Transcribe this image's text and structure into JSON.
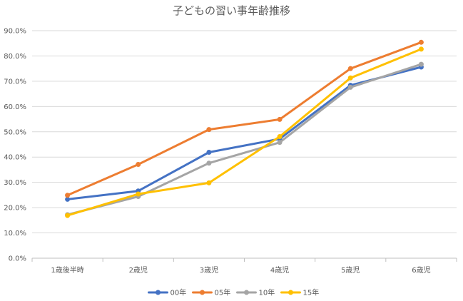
{
  "chart_data": {
    "type": "line",
    "title": "子どもの習い事年齢推移",
    "xlabel": "",
    "ylabel": "",
    "categories": [
      "1歳後半時",
      "2歳児",
      "3歳児",
      "4歳児",
      "5歳児",
      "6歳児"
    ],
    "ylim": [
      0,
      90
    ],
    "ytick_values": [
      0,
      10,
      20,
      30,
      40,
      50,
      60,
      70,
      80,
      90
    ],
    "ytick_labels": [
      "0.0%",
      "10.0%",
      "20.0%",
      "30.0%",
      "40.0%",
      "50.0%",
      "60.0%",
      "70.0%",
      "80.0%",
      "90.0%"
    ],
    "grid": true,
    "legend_position": "bottom",
    "series": [
      {
        "name": "00年",
        "color": "#4472C4",
        "values": [
          23.3,
          26.6,
          41.9,
          47.2,
          68.4,
          75.6
        ]
      },
      {
        "name": "05年",
        "color": "#ED7D31",
        "values": [
          24.9,
          37.1,
          50.9,
          54.9,
          75.0,
          85.4
        ]
      },
      {
        "name": "10年",
        "color": "#A5A5A5",
        "values": [
          17.2,
          24.4,
          37.6,
          45.8,
          67.6,
          76.7
        ]
      },
      {
        "name": "15年",
        "color": "#FFC000",
        "values": [
          16.9,
          25.4,
          29.8,
          48.1,
          71.3,
          82.7
        ]
      }
    ]
  }
}
